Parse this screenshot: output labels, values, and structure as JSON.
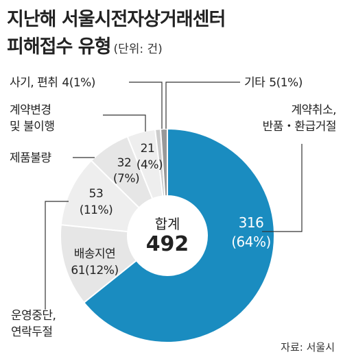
{
  "title_line1": "지난해 서울시전자상거래센터",
  "title_line2": "피해접수 유형",
  "unit": "(단위: 건)",
  "source": "자료: 서울시",
  "chart_data": {
    "type": "pie",
    "donut": true,
    "center_label": "합계",
    "center_value": "492",
    "slices": [
      {
        "name": "계약취소,\n반품・환급거절",
        "value": 316,
        "pct": "64%",
        "value_label": "316",
        "pct_label": "(64%)",
        "color": "#1a8cc0"
      },
      {
        "name": "배송지연",
        "value": 61,
        "pct": "12%",
        "value_label": "61(12%)",
        "color": "#e6e6e6"
      },
      {
        "name": "운영중단,\n연락두절",
        "value": 53,
        "pct": "11%",
        "value_label": "53",
        "pct_label": "(11%)",
        "color": "#eeeeee"
      },
      {
        "name": "제품불량",
        "value": 32,
        "pct": "7%",
        "value_label": "32",
        "pct_label": "(7%)",
        "color": "#e6e6e6"
      },
      {
        "name": "계약변경\n및 불이행",
        "value": 21,
        "pct": "4%",
        "value_label": "21",
        "pct_label": "(4%)",
        "color": "#eeeeee"
      },
      {
        "name": "사기, 편취",
        "value": 4,
        "pct": "1%",
        "value_label": "4(1%)",
        "color": "#cccccc"
      },
      {
        "name": "기타",
        "value": 5,
        "pct": "1%",
        "value_label": "5(1%)",
        "color": "#999999"
      }
    ]
  }
}
